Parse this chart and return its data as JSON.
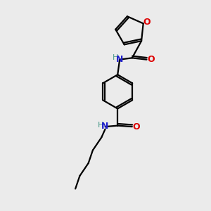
{
  "background_color": "#ebebeb",
  "atom_colors": {
    "C": "#000000",
    "N": "#2020cc",
    "O": "#dd0000",
    "H": "#4a9a8a"
  },
  "bond_color": "#000000",
  "figsize": [
    3.0,
    3.0
  ],
  "dpi": 100
}
